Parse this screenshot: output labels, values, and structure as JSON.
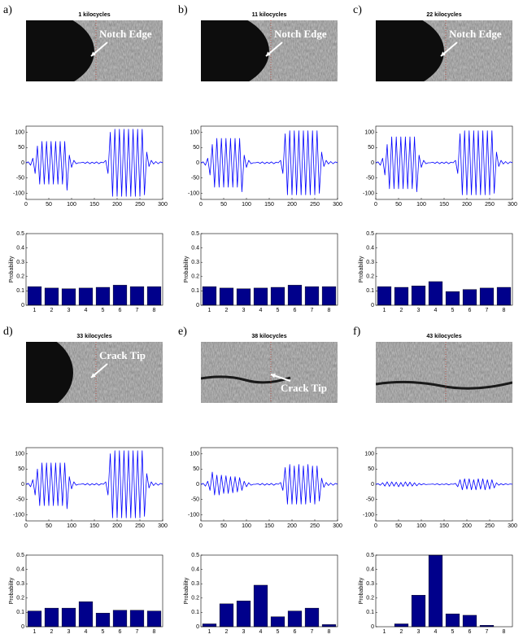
{
  "chart_data": [
    {
      "type": "line",
      "panel_label": "a)",
      "title": "1 kilocycles",
      "annotation": "Notch Edge",
      "color": "#0000ff",
      "x": [
        0,
        5,
        10,
        15,
        20,
        25,
        30,
        35,
        40,
        45,
        50,
        55,
        60,
        65,
        70,
        75,
        80,
        85,
        90,
        95,
        100,
        105,
        110,
        115,
        120,
        125,
        130,
        135,
        140,
        145,
        150,
        155,
        160,
        165,
        170,
        175,
        180,
        185,
        190,
        195,
        200,
        205,
        210,
        215,
        220,
        225,
        230,
        235,
        240,
        245,
        250,
        255,
        260,
        265,
        270,
        275,
        280,
        285,
        290,
        295,
        300
      ],
      "values": [
        0,
        3,
        -8,
        15,
        -35,
        55,
        -70,
        70,
        -70,
        70,
        -70,
        70,
        -70,
        70,
        -70,
        70,
        -70,
        70,
        -90,
        25,
        -15,
        8,
        -3,
        0,
        0,
        2,
        -2,
        3,
        -3,
        2,
        -2,
        3,
        -3,
        2,
        0,
        8,
        -35,
        100,
        -110,
        110,
        -110,
        110,
        -110,
        110,
        -110,
        110,
        -110,
        110,
        -110,
        110,
        -110,
        110,
        -105,
        35,
        -12,
        8,
        -4,
        4,
        -3,
        3,
        0
      ],
      "xlim": [
        0,
        300
      ],
      "ylim": [
        -120,
        120
      ],
      "xticks": [
        0,
        50,
        100,
        150,
        200,
        250,
        300
      ],
      "yticks": [
        -100,
        -50,
        0,
        50,
        100
      ]
    },
    {
      "type": "bar",
      "ylabel": "Probability",
      "color": "#00008b",
      "categories": [
        "1",
        "2",
        "3",
        "4",
        "5",
        "6",
        "7",
        "8"
      ],
      "values": [
        0.13,
        0.12,
        0.115,
        0.12,
        0.125,
        0.14,
        0.13,
        0.13
      ],
      "ylim": [
        0,
        0.5
      ],
      "yticks": [
        0,
        0.1,
        0.2,
        0.3,
        0.4,
        0.5
      ]
    },
    {
      "type": "line",
      "panel_label": "b)",
      "title": "11 kilocycles",
      "annotation": "Notch Edge",
      "color": "#0000ff",
      "x": [
        0,
        5,
        10,
        15,
        20,
        25,
        30,
        35,
        40,
        45,
        50,
        55,
        60,
        65,
        70,
        75,
        80,
        85,
        90,
        95,
        100,
        105,
        110,
        115,
        120,
        125,
        130,
        135,
        140,
        145,
        150,
        155,
        160,
        165,
        170,
        175,
        180,
        185,
        190,
        195,
        200,
        205,
        210,
        215,
        220,
        225,
        230,
        235,
        240,
        245,
        250,
        255,
        260,
        265,
        270,
        275,
        280,
        285,
        290,
        295,
        300
      ],
      "values": [
        0,
        3,
        -8,
        15,
        -40,
        60,
        -80,
        80,
        -80,
        80,
        -80,
        80,
        -80,
        80,
        -80,
        80,
        -80,
        80,
        -95,
        25,
        -15,
        8,
        -3,
        0,
        0,
        2,
        -2,
        3,
        -3,
        2,
        -2,
        3,
        -3,
        2,
        0,
        8,
        -35,
        95,
        -105,
        105,
        -105,
        105,
        -105,
        105,
        -105,
        105,
        -105,
        105,
        -105,
        105,
        -105,
        105,
        -100,
        35,
        -12,
        8,
        -4,
        4,
        -3,
        3,
        0
      ],
      "xlim": [
        0,
        300
      ],
      "ylim": [
        -120,
        120
      ],
      "xticks": [
        0,
        50,
        100,
        150,
        200,
        250,
        300
      ],
      "yticks": [
        -100,
        -50,
        0,
        50,
        100
      ]
    },
    {
      "type": "bar",
      "ylabel": "Probability",
      "color": "#00008b",
      "categories": [
        "1",
        "2",
        "3",
        "4",
        "5",
        "6",
        "7",
        "8"
      ],
      "values": [
        0.13,
        0.12,
        0.115,
        0.12,
        0.125,
        0.14,
        0.13,
        0.13
      ],
      "ylim": [
        0,
        0.5
      ],
      "yticks": [
        0,
        0.1,
        0.2,
        0.3,
        0.4,
        0.5
      ]
    },
    {
      "type": "line",
      "panel_label": "c)",
      "title": "22 kilocycles",
      "annotation": "Notch Edge",
      "color": "#0000ff",
      "x": [
        0,
        5,
        10,
        15,
        20,
        25,
        30,
        35,
        40,
        45,
        50,
        55,
        60,
        65,
        70,
        75,
        80,
        85,
        90,
        95,
        100,
        105,
        110,
        115,
        120,
        125,
        130,
        135,
        140,
        145,
        150,
        155,
        160,
        165,
        170,
        175,
        180,
        185,
        190,
        195,
        200,
        205,
        210,
        215,
        220,
        225,
        230,
        235,
        240,
        245,
        250,
        255,
        260,
        265,
        270,
        275,
        280,
        285,
        290,
        295,
        300
      ],
      "values": [
        0,
        3,
        -8,
        15,
        -40,
        60,
        -85,
        85,
        -85,
        85,
        -85,
        85,
        -85,
        85,
        -85,
        85,
        -85,
        85,
        -95,
        25,
        -15,
        8,
        -3,
        0,
        0,
        2,
        -2,
        3,
        -3,
        2,
        -2,
        3,
        -3,
        2,
        0,
        8,
        -35,
        95,
        -105,
        105,
        -105,
        105,
        -105,
        105,
        -105,
        105,
        -105,
        105,
        -105,
        105,
        -105,
        105,
        -100,
        35,
        -12,
        8,
        -4,
        4,
        -3,
        3,
        0
      ],
      "xlim": [
        0,
        300
      ],
      "ylim": [
        -120,
        120
      ],
      "xticks": [
        0,
        50,
        100,
        150,
        200,
        250,
        300
      ],
      "yticks": [
        -100,
        -50,
        0,
        50,
        100
      ]
    },
    {
      "type": "bar",
      "ylabel": "Probability",
      "color": "#00008b",
      "categories": [
        "1",
        "2",
        "3",
        "4",
        "5",
        "6",
        "7",
        "8"
      ],
      "values": [
        0.13,
        0.125,
        0.135,
        0.165,
        0.095,
        0.11,
        0.12,
        0.125
      ],
      "ylim": [
        0,
        0.5
      ],
      "yticks": [
        0,
        0.1,
        0.2,
        0.3,
        0.4,
        0.5
      ]
    },
    {
      "type": "line",
      "panel_label": "d)",
      "title": "33 kilocycles",
      "annotation": "Crack Tip",
      "color": "#0000ff",
      "x": [
        0,
        5,
        10,
        15,
        20,
        25,
        30,
        35,
        40,
        45,
        50,
        55,
        60,
        65,
        70,
        75,
        80,
        85,
        90,
        95,
        100,
        105,
        110,
        115,
        120,
        125,
        130,
        135,
        140,
        145,
        150,
        155,
        160,
        165,
        170,
        175,
        180,
        185,
        190,
        195,
        200,
        205,
        210,
        215,
        220,
        225,
        230,
        235,
        240,
        245,
        250,
        255,
        260,
        265,
        270,
        275,
        280,
        285,
        290,
        295,
        300
      ],
      "values": [
        0,
        3,
        -8,
        15,
        -35,
        50,
        -70,
        70,
        -70,
        70,
        -70,
        70,
        -70,
        70,
        -70,
        70,
        -70,
        70,
        -80,
        25,
        -15,
        8,
        -3,
        0,
        0,
        2,
        -2,
        3,
        -3,
        2,
        -2,
        3,
        -3,
        2,
        0,
        8,
        -35,
        100,
        -110,
        110,
        -110,
        110,
        -110,
        110,
        -110,
        110,
        -110,
        110,
        -110,
        110,
        -110,
        110,
        -105,
        35,
        -12,
        8,
        -4,
        4,
        -3,
        3,
        0
      ],
      "xlim": [
        0,
        300
      ],
      "ylim": [
        -120,
        120
      ],
      "xticks": [
        0,
        50,
        100,
        150,
        200,
        250,
        300
      ],
      "yticks": [
        -100,
        -50,
        0,
        50,
        100
      ]
    },
    {
      "type": "bar",
      "ylabel": "Probability",
      "color": "#00008b",
      "categories": [
        "1",
        "2",
        "3",
        "4",
        "5",
        "6",
        "7",
        "8"
      ],
      "values": [
        0.11,
        0.13,
        0.13,
        0.175,
        0.095,
        0.115,
        0.115,
        0.11
      ],
      "ylim": [
        0,
        0.5
      ],
      "yticks": [
        0,
        0.1,
        0.2,
        0.3,
        0.4,
        0.5
      ]
    },
    {
      "type": "line",
      "panel_label": "e)",
      "title": "38 kilocycles",
      "annotation": "Crack Tip",
      "color": "#0000ff",
      "x": [
        0,
        5,
        10,
        15,
        20,
        25,
        30,
        35,
        40,
        45,
        50,
        55,
        60,
        65,
        70,
        75,
        80,
        85,
        90,
        95,
        100,
        105,
        110,
        115,
        120,
        125,
        130,
        135,
        140,
        145,
        150,
        155,
        160,
        165,
        170,
        175,
        180,
        185,
        190,
        195,
        200,
        205,
        210,
        215,
        220,
        225,
        230,
        235,
        240,
        245,
        250,
        255,
        260,
        265,
        270,
        275,
        280,
        285,
        290,
        295,
        300
      ],
      "values": [
        0,
        3,
        -6,
        10,
        -20,
        40,
        -35,
        30,
        -35,
        30,
        -30,
        28,
        -30,
        25,
        -28,
        25,
        -25,
        22,
        -20,
        10,
        -8,
        5,
        -3,
        0,
        0,
        2,
        -2,
        3,
        -3,
        2,
        -2,
        3,
        -3,
        2,
        0,
        6,
        -20,
        55,
        -65,
        65,
        -65,
        60,
        -65,
        65,
        -65,
        60,
        -65,
        65,
        -60,
        60,
        -65,
        60,
        -55,
        20,
        -10,
        6,
        -4,
        4,
        -3,
        3,
        0
      ],
      "xlim": [
        0,
        300
      ],
      "ylim": [
        -120,
        120
      ],
      "xticks": [
        0,
        50,
        100,
        150,
        200,
        250,
        300
      ],
      "yticks": [
        -100,
        -50,
        0,
        50,
        100
      ]
    },
    {
      "type": "bar",
      "ylabel": "Probability",
      "color": "#00008b",
      "categories": [
        "1",
        "2",
        "3",
        "4",
        "5",
        "6",
        "7",
        "8"
      ],
      "values": [
        0.02,
        0.16,
        0.18,
        0.29,
        0.07,
        0.11,
        0.13,
        0.015
      ],
      "ylim": [
        0,
        0.5
      ],
      "yticks": [
        0,
        0.1,
        0.2,
        0.3,
        0.4,
        0.5
      ]
    },
    {
      "type": "line",
      "panel_label": "f)",
      "title": "43 kilocycles",
      "color": "#0000ff",
      "x": [
        0,
        5,
        10,
        15,
        20,
        25,
        30,
        35,
        40,
        45,
        50,
        55,
        60,
        65,
        70,
        75,
        80,
        85,
        90,
        95,
        100,
        105,
        110,
        115,
        120,
        125,
        130,
        135,
        140,
        145,
        150,
        155,
        160,
        165,
        170,
        175,
        180,
        185,
        190,
        195,
        200,
        205,
        210,
        215,
        220,
        225,
        230,
        235,
        240,
        245,
        250,
        255,
        260,
        265,
        270,
        275,
        280,
        285,
        290,
        295,
        300
      ],
      "values": [
        0,
        2,
        -3,
        5,
        -6,
        8,
        -7,
        8,
        -6,
        7,
        -8,
        6,
        -7,
        8,
        -6,
        7,
        -6,
        5,
        -5,
        3,
        -2,
        2,
        -1,
        0,
        0,
        1,
        -1,
        2,
        -2,
        1,
        -1,
        2,
        -2,
        1,
        0,
        3,
        -8,
        15,
        -18,
        18,
        -16,
        18,
        -18,
        15,
        -18,
        18,
        -16,
        18,
        -18,
        15,
        -16,
        15,
        -12,
        5,
        -3,
        2,
        -2,
        2,
        -1,
        1,
        0
      ],
      "xlim": [
        0,
        300
      ],
      "ylim": [
        -120,
        120
      ],
      "xticks": [
        0,
        50,
        100,
        150,
        200,
        250,
        300
      ],
      "yticks": [
        -100,
        -50,
        0,
        50,
        100
      ]
    },
    {
      "type": "bar",
      "ylabel": "Probability",
      "color": "#00008b",
      "categories": [
        "1",
        "2",
        "3",
        "4",
        "5",
        "6",
        "7",
        "8"
      ],
      "values": [
        0,
        0.02,
        0.22,
        0.5,
        0.09,
        0.08,
        0.01,
        0
      ],
      "ylim": [
        0,
        0.5
      ],
      "yticks": [
        0,
        0.1,
        0.2,
        0.3,
        0.4,
        0.5
      ]
    }
  ]
}
